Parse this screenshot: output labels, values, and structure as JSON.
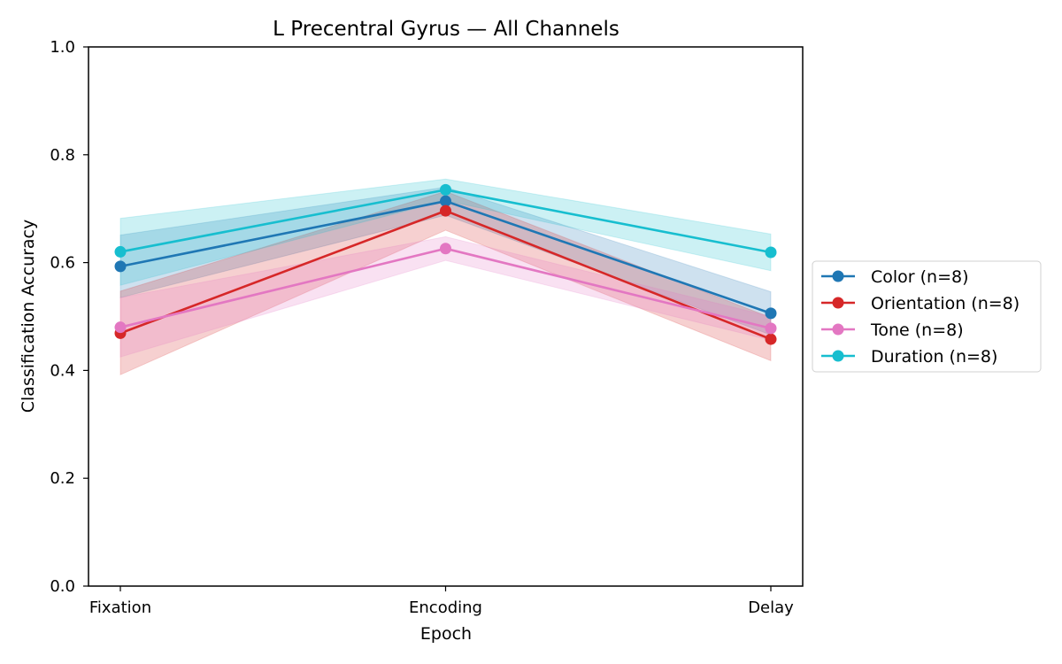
{
  "chart_data": {
    "type": "line",
    "title": "L Precentral Gyrus — All Channels",
    "xlabel": "Epoch",
    "ylabel": "Classification Accuracy",
    "categories": [
      "Fixation",
      "Encoding",
      "Delay"
    ],
    "ylim": [
      0.0,
      1.0
    ],
    "yticks": [
      0.0,
      0.2,
      0.4,
      0.6,
      0.8,
      1.0
    ],
    "ytick_labels": [
      "0.0",
      "0.2",
      "0.4",
      "0.6",
      "0.8",
      "1.0"
    ],
    "grid": false,
    "legend_position": "right-outside",
    "series": [
      {
        "name": "Color (n=8)",
        "color": "#1f77b4",
        "values": [
          0.593,
          0.714,
          0.506
        ],
        "lower": [
          0.535,
          0.688,
          0.466
        ],
        "upper": [
          0.651,
          0.74,
          0.546
        ]
      },
      {
        "name": "Orientation (n=8)",
        "color": "#d62728",
        "values": [
          0.469,
          0.696,
          0.458
        ],
        "lower": [
          0.392,
          0.66,
          0.418
        ],
        "upper": [
          0.547,
          0.732,
          0.498
        ]
      },
      {
        "name": "Tone (n=8)",
        "color": "#e377c2",
        "values": [
          0.48,
          0.626,
          0.478
        ],
        "lower": [
          0.425,
          0.604,
          0.456
        ],
        "upper": [
          0.535,
          0.648,
          0.5
        ]
      },
      {
        "name": "Duration (n=8)",
        "color": "#17becf",
        "values": [
          0.62,
          0.735,
          0.619
        ],
        "lower": [
          0.558,
          0.715,
          0.585
        ],
        "upper": [
          0.682,
          0.755,
          0.653
        ]
      }
    ]
  }
}
